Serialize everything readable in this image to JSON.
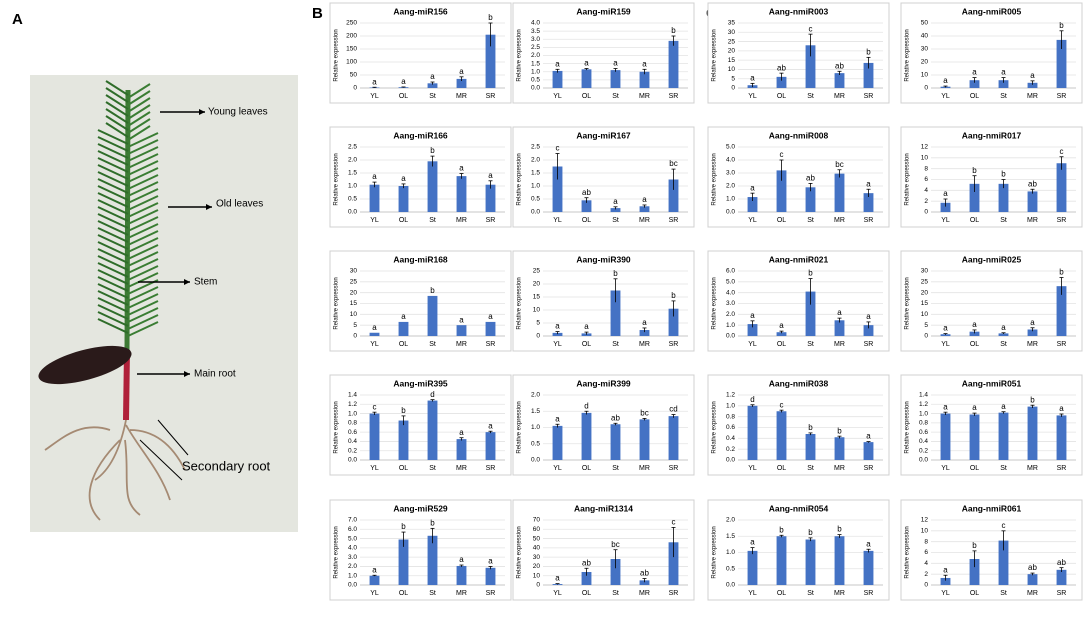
{
  "panel_labels": [
    "A",
    "B",
    "C"
  ],
  "photo": {
    "labels": [
      "Young leaves",
      "Old leaves",
      "Stem",
      "Main root",
      "Secondary root"
    ]
  },
  "chart_data": [
    {
      "type": "bar",
      "title": "Aang-miR156",
      "ylabel": "Relative expression",
      "categories": [
        "YL",
        "OL",
        "St",
        "MR",
        "SR"
      ],
      "values": [
        2,
        3,
        18,
        35,
        205
      ],
      "errors": [
        1,
        1,
        5,
        8,
        45
      ],
      "annotations": [
        "a",
        "a",
        "a",
        "a",
        "b"
      ],
      "color": "#4472c4",
      "ylim": [
        0,
        250
      ],
      "yticks": [
        0,
        50,
        100,
        150,
        200,
        250
      ]
    },
    {
      "type": "bar",
      "title": "Aang-miR159",
      "ylabel": "Relative expression",
      "categories": [
        "YL",
        "OL",
        "St",
        "MR",
        "SR"
      ],
      "values": [
        1.05,
        1.15,
        1.1,
        1.0,
        2.9
      ],
      "errors": [
        0.1,
        0.05,
        0.1,
        0.15,
        0.3
      ],
      "annotations": [
        "a",
        "a",
        "a",
        "a",
        "b"
      ],
      "color": "#4472c4",
      "ylim": [
        0,
        4
      ],
      "yticks": [
        {
          "value": 0,
          "label": "0.0"
        },
        0.5,
        {
          "value": 1,
          "label": "1.0"
        },
        1.5,
        {
          "value": 2,
          "label": "2.0"
        },
        2.5,
        {
          "value": 3,
          "label": "3.0"
        },
        3.5,
        {
          "value": 4,
          "label": "4.0"
        }
      ]
    },
    {
      "type": "bar",
      "title": "Aang-nmiR003",
      "ylabel": "Relative expression",
      "categories": [
        "YL",
        "OL",
        "St",
        "MR",
        "SR"
      ],
      "values": [
        1.5,
        6,
        23,
        8,
        13.5
      ],
      "errors": [
        1,
        2,
        6,
        1,
        3
      ],
      "annotations": [
        "a",
        "ab",
        "c",
        "ab",
        "b"
      ],
      "color": "#4472c4",
      "ylim": [
        0,
        35
      ],
      "yticks": [
        0,
        5,
        10,
        15,
        20,
        25,
        30,
        35
      ]
    },
    {
      "type": "bar",
      "title": "Aang-nmiR005",
      "ylabel": "Relative expression",
      "categories": [
        "YL",
        "OL",
        "St",
        "MR",
        "SR"
      ],
      "values": [
        1,
        6,
        6,
        4,
        37
      ],
      "errors": [
        0.5,
        2,
        2,
        1.5,
        7
      ],
      "annotations": [
        "a",
        "a",
        "a",
        "a",
        "b"
      ],
      "color": "#4472c4",
      "ylim": [
        0,
        50
      ],
      "yticks": [
        0,
        10,
        20,
        30,
        40,
        50
      ]
    },
    {
      "type": "bar",
      "title": "Aang-miR166",
      "ylabel": "Relative expression",
      "categories": [
        "YL",
        "OL",
        "St",
        "MR",
        "SR"
      ],
      "values": [
        1.05,
        1.0,
        1.95,
        1.38,
        1.05
      ],
      "errors": [
        0.1,
        0.08,
        0.2,
        0.1,
        0.15
      ],
      "annotations": [
        "a",
        "a",
        "b",
        "a",
        "a"
      ],
      "color": "#4472c4",
      "ylim": [
        0,
        2.5
      ],
      "yticks": [
        {
          "value": 0,
          "label": "0.0"
        },
        0.5,
        {
          "value": 1,
          "label": "1.0"
        },
        1.5,
        {
          "value": 2,
          "label": "2.0"
        },
        2.5
      ]
    },
    {
      "type": "bar",
      "title": "Aang-miR167",
      "ylabel": "Relative expression",
      "categories": [
        "YL",
        "OL",
        "St",
        "MR",
        "SR"
      ],
      "values": [
        1.75,
        0.45,
        0.15,
        0.22,
        1.25
      ],
      "errors": [
        0.5,
        0.1,
        0.05,
        0.05,
        0.4
      ],
      "annotations": [
        "c",
        "ab",
        "a",
        "a",
        "bc"
      ],
      "color": "#4472c4",
      "ylim": [
        0,
        2.5
      ],
      "yticks": [
        {
          "value": 0,
          "label": "0.0"
        },
        0.5,
        {
          "value": 1,
          "label": "1.0"
        },
        1.5,
        {
          "value": 2,
          "label": "2.0"
        },
        2.5
      ]
    },
    {
      "type": "bar",
      "title": "Aang-nmiR008",
      "ylabel": "Relative expression",
      "categories": [
        "YL",
        "OL",
        "St",
        "MR",
        "SR"
      ],
      "values": [
        1.15,
        3.2,
        1.9,
        2.95,
        1.45
      ],
      "errors": [
        0.3,
        0.8,
        0.3,
        0.3,
        0.3
      ],
      "annotations": [
        "a",
        "c",
        "ab",
        "bc",
        "a"
      ],
      "color": "#4472c4",
      "ylim": [
        0,
        5
      ],
      "yticks": [
        {
          "value": 0,
          "label": "0.0"
        },
        {
          "value": 1,
          "label": "1.0"
        },
        {
          "value": 2,
          "label": "2.0"
        },
        {
          "value": 3,
          "label": "3.0"
        },
        {
          "value": 4,
          "label": "4.0"
        },
        {
          "value": 5,
          "label": "5.0"
        }
      ]
    },
    {
      "type": "bar",
      "title": "Aang-nmiR017",
      "ylabel": "Relative expression",
      "categories": [
        "YL",
        "OL",
        "St",
        "MR",
        "SR"
      ],
      "values": [
        1.7,
        5.2,
        5.2,
        3.8,
        9
      ],
      "errors": [
        0.7,
        1.5,
        0.8,
        0.4,
        1.2
      ],
      "annotations": [
        "a",
        "b",
        "b",
        "ab",
        "c"
      ],
      "color": "#4472c4",
      "ylim": [
        0,
        12
      ],
      "yticks": [
        0,
        2,
        4,
        6,
        8,
        10,
        12
      ]
    },
    {
      "type": "bar",
      "title": "Aang-miR168",
      "ylabel": "Relative expression",
      "categories": [
        "YL",
        "OL",
        "St",
        "MR",
        "SR"
      ],
      "values": [
        1.5,
        6.5,
        18.5,
        5,
        6.5
      ],
      "annotations": [
        "a",
        "a",
        "b",
        "a",
        "a"
      ],
      "color": "#4472c4",
      "ylim": [
        0,
        30
      ],
      "yticks": [
        0,
        5,
        10,
        15,
        20,
        25,
        30
      ]
    },
    {
      "type": "bar",
      "title": "Aang-miR390",
      "ylabel": "Relative expression",
      "categories": [
        "YL",
        "OL",
        "St",
        "MR",
        "SR"
      ],
      "values": [
        1.2,
        1.0,
        17.5,
        2.3,
        10.5
      ],
      "errors": [
        0.5,
        0.5,
        4.5,
        0.8,
        3
      ],
      "annotations": [
        "a",
        "a",
        "b",
        "a",
        "b"
      ],
      "color": "#4472c4",
      "ylim": [
        0,
        25
      ],
      "yticks": [
        0,
        5,
        10,
        15,
        20,
        25
      ]
    },
    {
      "type": "bar",
      "title": "Aang-nmiR021",
      "ylabel": "Relative expression",
      "categories": [
        "YL",
        "OL",
        "St",
        "MR",
        "SR"
      ],
      "values": [
        1.1,
        0.35,
        4.1,
        1.45,
        1.0
      ],
      "errors": [
        0.3,
        0.1,
        1.2,
        0.2,
        0.3
      ],
      "annotations": [
        "a",
        "a",
        "b",
        "a",
        "a"
      ],
      "color": "#4472c4",
      "ylim": [
        0,
        6
      ],
      "yticks": [
        {
          "value": 0,
          "label": "0.0"
        },
        {
          "value": 1,
          "label": "1.0"
        },
        {
          "value": 2,
          "label": "2.0"
        },
        {
          "value": 3,
          "label": "3.0"
        },
        {
          "value": 4,
          "label": "4.0"
        },
        {
          "value": 5,
          "label": "5.0"
        },
        {
          "value": 6,
          "label": "6.0"
        }
      ]
    },
    {
      "type": "bar",
      "title": "Aang-nmiR025",
      "ylabel": "Relative expression",
      "categories": [
        "YL",
        "OL",
        "St",
        "MR",
        "SR"
      ],
      "values": [
        0.8,
        2,
        1.2,
        3,
        23
      ],
      "errors": [
        0.3,
        0.8,
        0.3,
        0.8,
        4
      ],
      "annotations": [
        "a",
        "a",
        "a",
        "a",
        "b"
      ],
      "color": "#4472c4",
      "ylim": [
        0,
        30
      ],
      "yticks": [
        0,
        5,
        10,
        15,
        20,
        25,
        30
      ]
    },
    {
      "type": "bar",
      "title": "Aang-miR395",
      "ylabel": "Relative expression",
      "categories": [
        "YL",
        "OL",
        "St",
        "MR",
        "SR"
      ],
      "values": [
        1.0,
        0.85,
        1.28,
        0.45,
        0.6
      ],
      "errors": [
        0.03,
        0.1,
        0.02,
        0.03,
        0.02
      ],
      "annotations": [
        "c",
        "b",
        "d",
        "a",
        "a"
      ],
      "color": "#4472c4",
      "ylim": [
        0,
        1.4
      ],
      "yticks": [
        {
          "value": 0,
          "label": "0.0"
        },
        0.2,
        0.4,
        0.6,
        0.8,
        {
          "value": 1,
          "label": "1.0"
        },
        1.2,
        1.4
      ]
    },
    {
      "type": "bar",
      "title": "Aang-miR399",
      "ylabel": "Relative expression",
      "categories": [
        "YL",
        "OL",
        "St",
        "MR",
        "SR"
      ],
      "values": [
        1.05,
        1.45,
        1.1,
        1.25,
        1.35
      ],
      "errors": [
        0.05,
        0.05,
        0.03,
        0.03,
        0.05
      ],
      "annotations": [
        "a",
        "d",
        "ab",
        "bc",
        "cd"
      ],
      "color": "#4472c4",
      "ylim": [
        0,
        2
      ],
      "yticks": [
        {
          "value": 0,
          "label": "0.0"
        },
        0.5,
        {
          "value": 1,
          "label": "1.0"
        },
        1.5,
        {
          "value": 2,
          "label": "2.0"
        }
      ]
    },
    {
      "type": "bar",
      "title": "Aang-nmiR038",
      "ylabel": "Relative expression",
      "categories": [
        "YL",
        "OL",
        "St",
        "MR",
        "SR"
      ],
      "values": [
        1.0,
        0.9,
        0.48,
        0.42,
        0.33
      ],
      "errors": [
        0.02,
        0.02,
        0.02,
        0.02,
        0.01
      ],
      "annotations": [
        "d",
        "c",
        "b",
        "b",
        "a"
      ],
      "color": "#4472c4",
      "ylim": [
        0,
        1.2
      ],
      "yticks": [
        {
          "value": 0,
          "label": "0.0"
        },
        0.2,
        0.4,
        0.6,
        0.8,
        {
          "value": 1,
          "label": "1.0"
        },
        1.2
      ]
    },
    {
      "type": "bar",
      "title": "Aang-nmiR051",
      "ylabel": "Relative expression",
      "categories": [
        "YL",
        "OL",
        "St",
        "MR",
        "SR"
      ],
      "values": [
        1.0,
        0.98,
        1.02,
        1.15,
        0.96
      ],
      "errors": [
        0.03,
        0.03,
        0.02,
        0.03,
        0.03
      ],
      "annotations": [
        "a",
        "a",
        "a",
        "b",
        "a"
      ],
      "color": "#4472c4",
      "ylim": [
        0,
        1.4
      ],
      "yticks": [
        {
          "value": 0,
          "label": "0.0"
        },
        0.2,
        0.4,
        0.6,
        0.8,
        {
          "value": 1,
          "label": "1.0"
        },
        1.2,
        1.4
      ]
    },
    {
      "type": "bar",
      "title": "Aang-miR529",
      "ylabel": "Relative expression",
      "categories": [
        "YL",
        "OL",
        "St",
        "MR",
        "SR"
      ],
      "values": [
        1.0,
        4.9,
        5.3,
        2.05,
        1.85
      ],
      "errors": [
        0.05,
        0.8,
        0.8,
        0.1,
        0.15
      ],
      "annotations": [
        "a",
        "b",
        "b",
        "a",
        "a"
      ],
      "color": "#4472c4",
      "ylim": [
        0,
        7
      ],
      "yticks": [
        {
          "value": 0,
          "label": "0.0"
        },
        {
          "value": 1,
          "label": "1.0"
        },
        {
          "value": 2,
          "label": "2.0"
        },
        {
          "value": 3,
          "label": "3.0"
        },
        {
          "value": 4,
          "label": "4.0"
        },
        {
          "value": 5,
          "label": "5.0"
        },
        {
          "value": 6,
          "label": "6.0"
        },
        {
          "value": 7,
          "label": "7.0"
        }
      ]
    },
    {
      "type": "bar",
      "title": "Aang-miR1314",
      "ylabel": "Relative expression",
      "categories": [
        "YL",
        "OL",
        "St",
        "MR",
        "SR"
      ],
      "values": [
        1,
        14,
        28,
        5,
        46
      ],
      "errors": [
        0.5,
        4,
        10,
        2,
        16
      ],
      "annotations": [
        "a",
        "ab",
        "bc",
        "ab",
        "c"
      ],
      "color": "#4472c4",
      "ylim": [
        0,
        70
      ],
      "yticks": [
        0,
        10,
        20,
        30,
        40,
        50,
        60,
        70
      ]
    },
    {
      "type": "bar",
      "title": "Aang-nmiR054",
      "ylabel": "Relative expression",
      "categories": [
        "YL",
        "OL",
        "St",
        "MR",
        "SR"
      ],
      "values": [
        1.05,
        1.5,
        1.4,
        1.5,
        1.05
      ],
      "errors": [
        0.1,
        0.03,
        0.05,
        0.05,
        0.05
      ],
      "annotations": [
        "a",
        "b",
        "b",
        "b",
        "a"
      ],
      "color": "#4472c4",
      "ylim": [
        0,
        2
      ],
      "yticks": [
        {
          "value": 0,
          "label": "0.0"
        },
        0.5,
        {
          "value": 1,
          "label": "1.0"
        },
        1.5,
        {
          "value": 2,
          "label": "2.0"
        }
      ]
    },
    {
      "type": "bar",
      "title": "Aang-nmiR061",
      "ylabel": "Relative expression",
      "categories": [
        "YL",
        "OL",
        "St",
        "MR",
        "SR"
      ],
      "values": [
        1.3,
        4.8,
        8.2,
        2,
        2.8
      ],
      "errors": [
        0.5,
        1.5,
        1.8,
        0.2,
        0.4
      ],
      "annotations": [
        "a",
        "b",
        "c",
        "ab",
        "ab"
      ],
      "color": "#4472c4",
      "ylim": [
        0,
        12
      ],
      "yticks": [
        0,
        2,
        4,
        6,
        8,
        10,
        12
      ]
    }
  ]
}
